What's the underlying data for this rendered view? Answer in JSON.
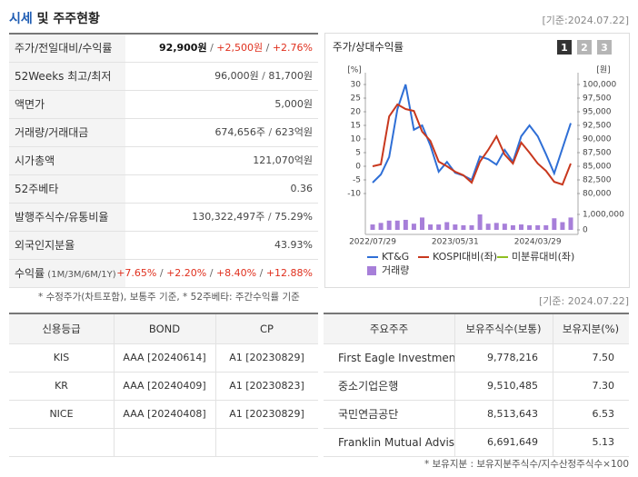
{
  "header": {
    "title_main": "시세",
    "title_rest": " 및 주주현황",
    "date": "[기준:2024.07.22]"
  },
  "summary": {
    "separator": " / ",
    "rows": [
      {
        "label": "주가/전일대비/수익률",
        "parts": [
          "92,900원",
          "+2,500원",
          "+2.76%"
        ]
      },
      {
        "label": "52Weeks 최고/최저",
        "parts": [
          "96,000원",
          "81,700원"
        ]
      },
      {
        "label": "액면가",
        "parts": [
          "5,000원"
        ]
      },
      {
        "label": "거래량/거래대금",
        "parts": [
          "674,656주",
          "623억원"
        ]
      },
      {
        "label": "시가총액",
        "parts": [
          "121,070억원"
        ]
      },
      {
        "label": "52주베타",
        "parts": [
          "0.36"
        ]
      },
      {
        "label": "발행주식수/유통비율",
        "parts": [
          "130,322,497주",
          "75.29%"
        ]
      },
      {
        "label": "외국인지분율",
        "parts": [
          "43.93%"
        ]
      },
      {
        "label": "수익률",
        "label_note": " (1M/3M/6M/1Y)",
        "parts": [
          "+7.65%",
          "+2.20%",
          "+8.40%",
          "+12.88%"
        ]
      }
    ]
  },
  "summary_note": "* 수정주가(차트포함), 보통주 기준, * 52주베타: 주간수익률 기준",
  "chart_data": {
    "type": "line",
    "title": "주가/상대수익률",
    "buttons": [
      "1",
      "2",
      "3"
    ],
    "categories": [
      "2022/07/29",
      null,
      null,
      null,
      null,
      null,
      null,
      null,
      null,
      null,
      "2023/05/31",
      null,
      null,
      null,
      null,
      null,
      null,
      null,
      null,
      null,
      "2024/03/29",
      null,
      null,
      null,
      null
    ],
    "y_unit": "[%]",
    "y2_unit": "[원]",
    "ylim": [
      -10,
      30
    ],
    "yticks": [
      -10,
      -5,
      0,
      5,
      10,
      15,
      20,
      25,
      30
    ],
    "y2lim": [
      80000,
      100000
    ],
    "y2ticks": [
      {
        "value": 80000,
        "label": "80,000"
      },
      {
        "value": 82500,
        "label": "82,500"
      },
      {
        "value": 85000,
        "label": "85,000"
      },
      {
        "value": 87500,
        "label": "87,500"
      },
      {
        "value": 90000,
        "label": "90,000"
      },
      {
        "value": 92500,
        "label": "92,500"
      },
      {
        "value": 95000,
        "label": "95,000"
      },
      {
        "value": 97500,
        "label": "97,500"
      },
      {
        "value": 100000,
        "label": "100,000"
      }
    ],
    "volume_lim": [
      0,
      1000000
    ],
    "volume_ticks": [
      0,
      {
        "value": 1000000,
        "label": "1,000,000"
      }
    ],
    "series": [
      {
        "name": "KT&G",
        "color": "#2f6fd6",
        "axis": "y2",
        "values": [
          82000,
          83500,
          86700,
          95500,
          100000,
          91700,
          92500,
          88800,
          84000,
          85800,
          83800,
          83300,
          82500,
          86800,
          86300,
          85300,
          88000,
          85800,
          90500,
          92500,
          90500,
          87200,
          83700,
          88300,
          92900
        ]
      },
      {
        "name": "KOSPI대비(좌)",
        "color": "#c8381e",
        "values": [
          0,
          0.7,
          18.3,
          22.7,
          21,
          20.3,
          12.7,
          9.3,
          1.7,
          0,
          -2,
          -3.3,
          -6,
          1.7,
          6,
          11,
          4.3,
          1,
          8.7,
          5,
          1,
          -1.7,
          -5.7,
          -6.7,
          1
        ]
      },
      {
        "name": "미분류대비(좌)",
        "color": "#8fbf21"
      },
      {
        "name": "거래량",
        "color": "#a77fd9",
        "type": "bar",
        "axis": "volume",
        "values": [
          350000,
          450000,
          600000,
          600000,
          650000,
          400000,
          800000,
          350000,
          350000,
          500000,
          350000,
          300000,
          300000,
          1000000,
          400000,
          450000,
          400000,
          300000,
          350000,
          300000,
          300000,
          300000,
          750000,
          500000,
          800000
        ]
      }
    ]
  },
  "ratings": {
    "header": [
      "신용등급",
      "BOND",
      "CP"
    ],
    "rows": [
      [
        "KIS",
        "AAA  [20240614]",
        "A1  [20230829]"
      ],
      [
        "KR",
        "AAA  [20240409]",
        "A1  [20230823]"
      ],
      [
        "NICE",
        "AAA  [20240408]",
        "A1  [20230829]"
      ]
    ]
  },
  "holders_date": "[기준: 2024.07.22]",
  "holders": {
    "header": [
      "주요주주",
      "보유주식수(보통)",
      "보유지분(%)"
    ],
    "rows": [
      [
        "First Eagle Investment ···",
        "9,778,216",
        "7.50"
      ],
      [
        "중소기업은행",
        "9,510,485",
        "7.30"
      ],
      [
        "국민연금공단",
        "8,513,643",
        "6.53"
      ],
      [
        "Franklin Mutual Advise···",
        "6,691,649",
        "5.13"
      ]
    ]
  },
  "holders_note": "* 보유지분 : 보유지분주식수/지수산정주식수×100"
}
